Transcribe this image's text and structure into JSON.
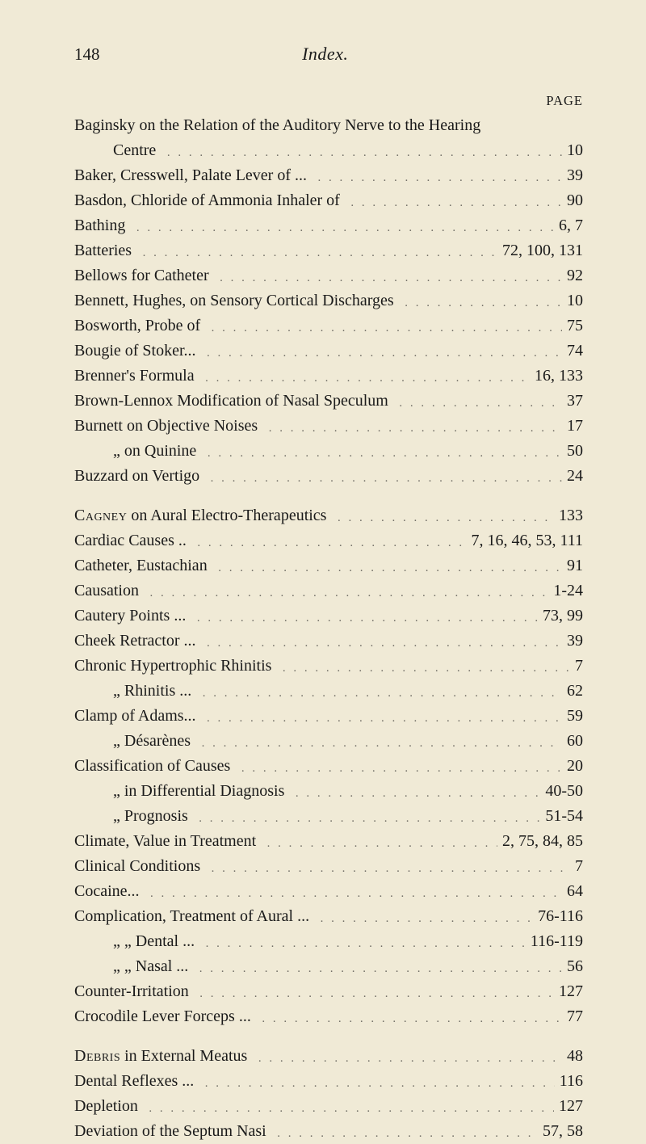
{
  "header": {
    "page_number": "148",
    "title": "Index.",
    "page_label": "PAGE"
  },
  "blocks": [
    {
      "entries": [
        {
          "label": "Baginsky on the Relation of the Auditory Nerve to the Hearing",
          "page": "",
          "indent": 0,
          "nodots": true
        },
        {
          "label": "Centre",
          "page": "10",
          "indent": 1
        },
        {
          "label": "Baker, Cresswell, Palate Lever of ...",
          "page": "39",
          "indent": 0
        },
        {
          "label": "Basdon, Chloride of Ammonia Inhaler of",
          "page": "90",
          "indent": 0
        },
        {
          "label": "Bathing",
          "page": "6, 7",
          "indent": 0
        },
        {
          "label": "Batteries",
          "page": "72, 100, 131",
          "indent": 0
        },
        {
          "label": "Bellows for Catheter",
          "page": "92",
          "indent": 0
        },
        {
          "label": "Bennett, Hughes, on Sensory Cortical Discharges",
          "page": "10",
          "indent": 0
        },
        {
          "label": "Bosworth, Probe of",
          "page": "75",
          "indent": 0
        },
        {
          "label": "Bougie of Stoker...",
          "page": "74",
          "indent": 0
        },
        {
          "label": "Brenner's Formula",
          "page": "16, 133",
          "indent": 0
        },
        {
          "label": "Brown-Lennox Modification of Nasal Speculum",
          "page": "37",
          "indent": 0
        },
        {
          "label": "Burnett on Objective Noises",
          "page": "17",
          "indent": 0
        },
        {
          "label": "„    on Quinine",
          "page": "50",
          "indent": 1
        },
        {
          "label": "Buzzard on Vertigo",
          "page": "24",
          "indent": 0
        }
      ]
    },
    {
      "entries": [
        {
          "label": "Cagney on Aural Electro-Therapeutics",
          "page": "133",
          "indent": 0,
          "smallcaps_first": "Cagney"
        },
        {
          "label": "Cardiac Causes  ..",
          "page": "7, 16, 46, 53, 111",
          "indent": 0
        },
        {
          "label": "Catheter, Eustachian",
          "page": "91",
          "indent": 0
        },
        {
          "label": "Causation",
          "page": "1-24",
          "indent": 0
        },
        {
          "label": "Cautery Points  ...",
          "page": "73, 99",
          "indent": 0
        },
        {
          "label": "Cheek Retractor ...",
          "page": "39",
          "indent": 0
        },
        {
          "label": "Chronic Hypertrophic Rhinitis",
          "page": "7",
          "indent": 0
        },
        {
          "label": "„    Rhinitis ...",
          "page": "62",
          "indent": 1
        },
        {
          "label": "Clamp of Adams...",
          "page": "59",
          "indent": 0
        },
        {
          "label": "„    Désarènes",
          "page": "60",
          "indent": 1
        },
        {
          "label": "Classification of Causes",
          "page": "20",
          "indent": 0
        },
        {
          "label": "„      in Differential Diagnosis",
          "page": "40-50",
          "indent": 1
        },
        {
          "label": "„      Prognosis",
          "page": "51-54",
          "indent": 1
        },
        {
          "label": "Climate, Value in Treatment",
          "page": "2, 75, 84, 85",
          "indent": 0
        },
        {
          "label": "Clinical Conditions",
          "page": "7",
          "indent": 0
        },
        {
          "label": "Cocaine...",
          "page": "64",
          "indent": 0
        },
        {
          "label": "Complication, Treatment of Aural ...",
          "page": "76-116",
          "indent": 0
        },
        {
          "label": "„          „        Dental ...",
          "page": "116-119",
          "indent": 1
        },
        {
          "label": "„          „        Nasal ...",
          "page": "56",
          "indent": 1
        },
        {
          "label": "Counter-Irritation",
          "page": "127",
          "indent": 0
        },
        {
          "label": "Crocodile Lever Forceps ...",
          "page": "77",
          "indent": 0
        }
      ]
    },
    {
      "entries": [
        {
          "label": "Debris in External Meatus",
          "page": "48",
          "indent": 0,
          "smallcaps_first": "Debris"
        },
        {
          "label": "Dental Reflexes ...",
          "page": "116",
          "indent": 0
        },
        {
          "label": "Depletion",
          "page": "127",
          "indent": 0
        },
        {
          "label": "Deviation of the Septum Nasi",
          "page": "57, 58",
          "indent": 0
        }
      ]
    }
  ],
  "filler": ". . . . . . . . . . . . . . . . . . . . . . . . . . . . . . . . . . . . . . . . . . . . . . . . . . . . ."
}
